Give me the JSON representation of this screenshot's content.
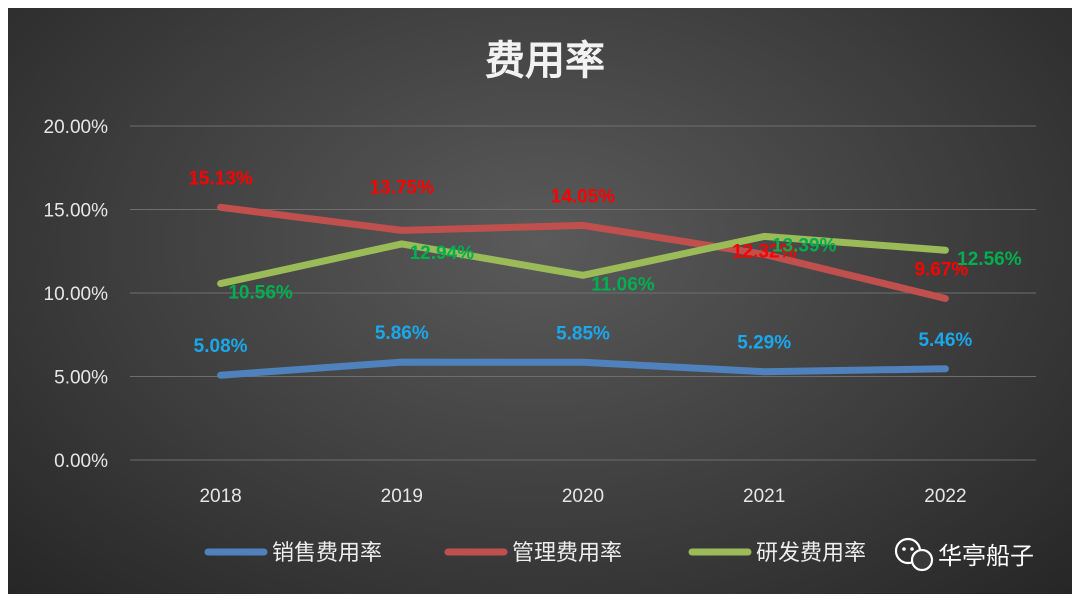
{
  "chart_data": {
    "type": "line",
    "title": "费用率",
    "categories": [
      "2018",
      "2019",
      "2020",
      "2021",
      "2022"
    ],
    "ylim": [
      0,
      20
    ],
    "yticks": [
      "0.00%",
      "5.00%",
      "10.00%",
      "15.00%",
      "20.00%"
    ],
    "ytick_values": [
      0,
      5,
      10,
      15,
      20
    ],
    "grid": true,
    "legend_position": "bottom",
    "series": [
      {
        "name": "销售费用率",
        "color": "#4f81bd",
        "label_color": "#1aa7ec",
        "values": [
          5.08,
          5.86,
          5.85,
          5.29,
          5.46
        ],
        "labels": [
          "5.08%",
          "5.86%",
          "5.85%",
          "5.29%",
          "5.46%"
        ]
      },
      {
        "name": "管理费用率",
        "color": "#c0504d",
        "label_color": "#ff0000",
        "values": [
          15.13,
          13.75,
          14.05,
          12.32,
          9.67
        ],
        "labels": [
          "15.13%",
          "13.75%",
          "14.05%",
          "12.32%",
          "9.67%"
        ]
      },
      {
        "name": "研发费用率",
        "color": "#9bbb59",
        "label_color": "#00b050",
        "values": [
          10.56,
          12.94,
          11.06,
          13.39,
          12.56
        ],
        "labels": [
          "10.56%",
          "12.94%",
          "11.06%",
          "13.39%",
          "12.56%"
        ]
      }
    ]
  },
  "watermark": {
    "text": "华亭船子",
    "icon": "wechat-icon"
  }
}
